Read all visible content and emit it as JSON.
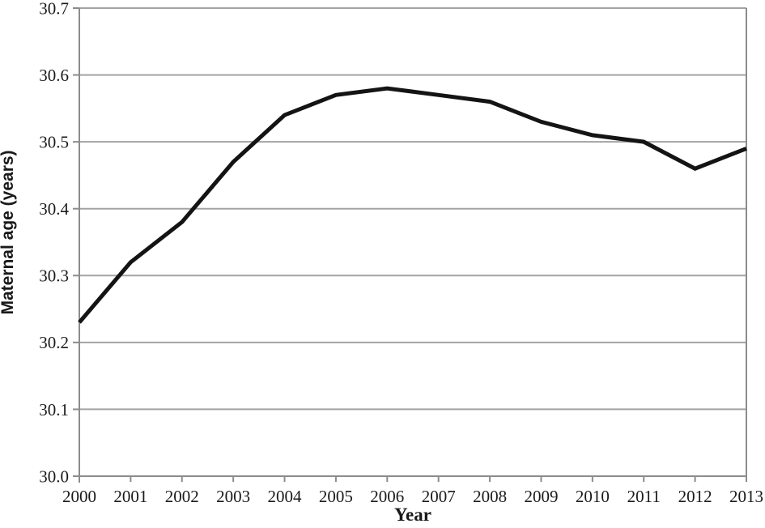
{
  "chart_data": {
    "type": "line",
    "title": "",
    "xlabel": "Year",
    "ylabel": "Maternal age (years)",
    "x": [
      2000,
      2001,
      2002,
      2003,
      2004,
      2005,
      2006,
      2007,
      2008,
      2009,
      2010,
      2011,
      2012,
      2013
    ],
    "values": [
      30.23,
      30.32,
      30.38,
      30.47,
      30.54,
      30.57,
      30.58,
      30.57,
      30.56,
      30.53,
      30.51,
      30.5,
      30.46,
      30.49
    ],
    "ylim": [
      30.0,
      30.7
    ],
    "ytick_step": 0.1,
    "ytick_decimals": 1,
    "grid": "horizontal-on",
    "legend": "none",
    "colors": {
      "line": "#141414",
      "axis": "#8c8c8c",
      "gridline": "#a3a3a3",
      "text": "#1a1a1a",
      "background": "#ffffff"
    }
  }
}
